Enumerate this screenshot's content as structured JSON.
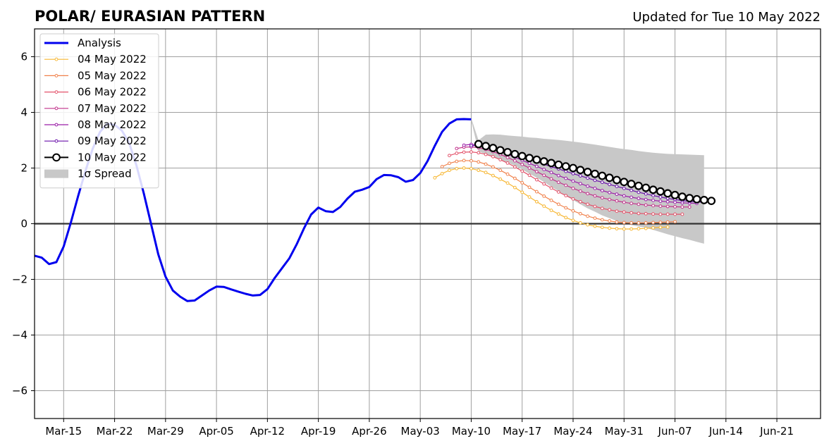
{
  "chart_data": {
    "type": "line",
    "title": "POLAR/ EURASIAN  PATTERN",
    "subtitle": "Updated for Tue 10 May 2022",
    "xlabel": "",
    "ylabel": "",
    "x_range": [
      "2022-03-11",
      "2022-06-27"
    ],
    "ylim": [
      -7,
      7
    ],
    "yticks": [
      -6,
      -4,
      -2,
      0,
      2,
      4,
      6
    ],
    "ytick_labels": [
      "−6",
      "−4",
      "−2",
      "0",
      "2",
      "4",
      "6"
    ],
    "xticks": [
      "2022-03-15",
      "2022-03-22",
      "2022-03-29",
      "2022-04-05",
      "2022-04-12",
      "2022-04-19",
      "2022-04-26",
      "2022-05-03",
      "2022-05-10",
      "2022-05-17",
      "2022-05-24",
      "2022-05-31",
      "2022-06-07",
      "2022-06-14",
      "2022-06-21"
    ],
    "xtick_labels": [
      "Mar-15",
      "Mar-22",
      "Mar-29",
      "Apr-05",
      "Apr-12",
      "Apr-19",
      "Apr-26",
      "May-03",
      "May-10",
      "May-17",
      "May-24",
      "May-31",
      "Jun-07",
      "Jun-14",
      "Jun-21"
    ],
    "grid": true,
    "legend_position": "top-left",
    "colors": {
      "analysis": "#0000ee",
      "spread": "#c8c8c8",
      "zero_line": "#333333",
      "grid": "#a0a0a0"
    },
    "analysis": {
      "name": "Analysis",
      "start_date": "2022-03-11",
      "values": [
        -1.15,
        -1.22,
        -1.45,
        -1.38,
        -0.82,
        0.05,
        1.0,
        1.9,
        2.7,
        3.3,
        3.6,
        3.55,
        3.35,
        2.9,
        2.1,
        1.1,
        0.0,
        -1.1,
        -1.9,
        -2.4,
        -2.62,
        -2.78,
        -2.76,
        -2.58,
        -2.4,
        -2.26,
        -2.27,
        -2.36,
        -2.44,
        -2.52,
        -2.58,
        -2.56,
        -2.35,
        -1.95,
        -1.6,
        -1.25,
        -0.75,
        -0.18,
        0.33,
        0.58,
        0.45,
        0.42,
        0.6,
        0.9,
        1.15,
        1.22,
        1.32,
        1.6,
        1.75,
        1.74,
        1.67,
        1.51,
        1.57,
        1.82,
        2.25,
        2.8,
        3.3,
        3.6,
        3.75,
        3.76,
        3.75
      ]
    },
    "spread": {
      "name": "1σ Spread",
      "start_date": "2022-05-10",
      "upper": [
        3.8,
        3.0,
        3.2,
        3.21,
        3.2,
        3.17,
        3.15,
        3.13,
        3.1,
        3.08,
        3.05,
        3.03,
        3.01,
        2.98,
        2.95,
        2.92,
        2.88,
        2.84,
        2.8,
        2.76,
        2.72,
        2.68,
        2.65,
        2.61,
        2.58,
        2.55,
        2.53,
        2.51,
        2.5,
        2.49,
        2.48,
        2.47,
        2.46
      ],
      "lower": [
        3.7,
        2.6,
        2.5,
        2.4,
        2.3,
        2.2,
        2.08,
        1.95,
        1.8,
        1.65,
        1.5,
        1.33,
        1.17,
        1.0,
        0.85,
        0.7,
        0.55,
        0.43,
        0.3,
        0.2,
        0.1,
        0.03,
        -0.05,
        -0.1,
        -0.15,
        -0.22,
        -0.3,
        -0.38,
        -0.45,
        -0.52,
        -0.58,
        -0.65,
        -0.72
      ]
    },
    "series": [
      {
        "name": "04 May 2022",
        "color": "#f7b733",
        "start_date": "2022-05-05",
        "values": [
          1.65,
          1.8,
          1.92,
          1.98,
          2.0,
          1.98,
          1.92,
          1.84,
          1.73,
          1.6,
          1.46,
          1.3,
          1.13,
          0.96,
          0.79,
          0.63,
          0.48,
          0.35,
          0.22,
          0.12,
          0.03,
          -0.04,
          -0.09,
          -0.13,
          -0.16,
          -0.18,
          -0.19,
          -0.19,
          -0.18,
          -0.17,
          -0.15,
          -0.13,
          -0.12
        ]
      },
      {
        "name": "05 May 2022",
        "color": "#f0804a",
        "start_date": "2022-05-06",
        "values": [
          2.05,
          2.17,
          2.24,
          2.27,
          2.26,
          2.22,
          2.14,
          2.04,
          1.92,
          1.78,
          1.63,
          1.47,
          1.31,
          1.15,
          0.99,
          0.84,
          0.7,
          0.57,
          0.46,
          0.36,
          0.27,
          0.2,
          0.14,
          0.1,
          0.06,
          0.04,
          0.03,
          0.03,
          0.03,
          0.04,
          0.05,
          0.06,
          0.07
        ]
      },
      {
        "name": "06 May 2022",
        "color": "#e3526a",
        "start_date": "2022-05-07",
        "values": [
          2.45,
          2.53,
          2.57,
          2.58,
          2.55,
          2.49,
          2.41,
          2.3,
          2.18,
          2.04,
          1.89,
          1.74,
          1.58,
          1.43,
          1.28,
          1.14,
          1.01,
          0.89,
          0.79,
          0.7,
          0.62,
          0.55,
          0.5,
          0.45,
          0.42,
          0.39,
          0.37,
          0.36,
          0.35,
          0.34,
          0.34,
          0.34,
          0.34
        ]
      },
      {
        "name": "07 May 2022",
        "color": "#c2338c",
        "start_date": "2022-05-08",
        "values": [
          2.7,
          2.75,
          2.76,
          2.73,
          2.67,
          2.59,
          2.49,
          2.38,
          2.26,
          2.13,
          2.0,
          1.87,
          1.74,
          1.61,
          1.49,
          1.38,
          1.27,
          1.17,
          1.08,
          1.0,
          0.93,
          0.87,
          0.82,
          0.77,
          0.73,
          0.7,
          0.67,
          0.65,
          0.63,
          0.62,
          0.61,
          0.6,
          0.6
        ]
      },
      {
        "name": "08 May 2022",
        "color": "#9b1fa8",
        "start_date": "2022-05-09",
        "values": [
          2.82,
          2.85,
          2.83,
          2.77,
          2.69,
          2.6,
          2.5,
          2.39,
          2.28,
          2.17,
          2.06,
          1.95,
          1.84,
          1.73,
          1.63,
          1.53,
          1.44,
          1.35,
          1.27,
          1.19,
          1.12,
          1.06,
          1.0,
          0.95,
          0.91,
          0.87,
          0.84,
          0.81,
          0.79,
          0.77,
          0.75,
          0.74,
          0.73
        ]
      },
      {
        "name": "09 May 2022",
        "color": "#6a11aa",
        "start_date": "2022-05-10",
        "values": [
          2.8,
          2.82,
          2.79,
          2.73,
          2.66,
          2.58,
          2.5,
          2.41,
          2.32,
          2.23,
          2.14,
          2.05,
          1.97,
          1.88,
          1.8,
          1.72,
          1.64,
          1.56,
          1.49,
          1.41,
          1.34,
          1.27,
          1.2,
          1.13,
          1.07,
          1.01,
          0.96,
          0.91,
          0.87,
          0.83,
          0.8,
          0.78,
          0.77
        ]
      },
      {
        "name": "10 May 2022",
        "color": "#000000",
        "start_date": "2022-05-11",
        "values": [
          2.86,
          2.79,
          2.72,
          2.64,
          2.57,
          2.5,
          2.43,
          2.36,
          2.3,
          2.24,
          2.18,
          2.12,
          2.06,
          2.0,
          1.93,
          1.86,
          1.79,
          1.72,
          1.65,
          1.57,
          1.5,
          1.43,
          1.36,
          1.29,
          1.22,
          1.16,
          1.09,
          1.03,
          0.97,
          0.92,
          0.88,
          0.85,
          0.82
        ]
      }
    ]
  }
}
